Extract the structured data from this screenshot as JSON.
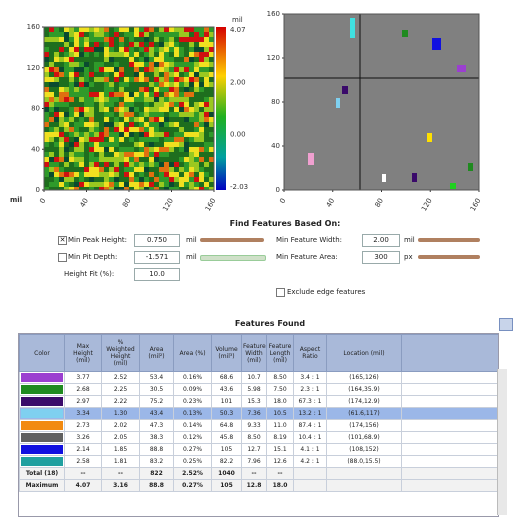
{
  "height_map": {
    "colorbar_unit": "mil",
    "colorbar_labels": [
      "4.07",
      "2.00",
      "0.00",
      "-2.03"
    ],
    "axis_unit": "mil",
    "yticks": [
      "0",
      "40",
      "80",
      "120",
      "160"
    ],
    "xticks": [
      "0",
      "40",
      "80",
      "120",
      "160"
    ]
  },
  "feature_map": {
    "yticks": [
      "0",
      "40",
      "80",
      "120",
      "160"
    ],
    "xticks": [
      "0",
      "40",
      "80",
      "120",
      "160"
    ]
  },
  "find_features": {
    "title": "Find Features Based On:",
    "left_fields": [
      {
        "label": "Min Peak Height:",
        "value": "0.750",
        "unit": "mil",
        "checked": true
      },
      {
        "label": "Min Pit Depth:",
        "value": "-1.571",
        "unit": "mil",
        "checked": false
      },
      {
        "label": "Height Fit (%):",
        "value": "10.0"
      }
    ],
    "right_fields": [
      {
        "label": "Min Feature Width:",
        "value": "2.00",
        "unit": "mil"
      },
      {
        "label": "Min Feature Area:",
        "value": "300",
        "unit": "px"
      }
    ],
    "exclude_edge": {
      "label": "Exclude edge features",
      "checked": false
    }
  },
  "features_found": {
    "title": "Features Found",
    "headers": [
      "Color",
      "Max Height (mil)",
      "% Weighted Height (mil)",
      "Area (mil²)",
      "Area (%)",
      "Volume (mil³)",
      "Feature Width (mil)",
      "Feature Length (mil)",
      "Aspect Ratio",
      "Location (mil)"
    ],
    "rows": [
      {
        "color": "#9b3fd0",
        "cells": [
          "3.77",
          "2.52",
          "53.4",
          "0.16%",
          "68.6",
          "10.7",
          "8.50",
          "3.4 : 1",
          "(165,126)"
        ]
      },
      {
        "color": "#1f8a1f",
        "cells": [
          "2.68",
          "2.25",
          "30.5",
          "0.09%",
          "43.6",
          "5.98",
          "7.50",
          "2.3 : 1",
          "(164,35.9)"
        ]
      },
      {
        "color": "#3a0a6a",
        "cells": [
          "2.97",
          "2.22",
          "75.2",
          "0.23%",
          "101",
          "15.3",
          "18.0",
          "67.3 : 1",
          "(174,12.9)"
        ]
      },
      {
        "color": "#7fd0f0",
        "selected": true,
        "cells": [
          "3.34",
          "1.30",
          "43.4",
          "0.13%",
          "50.3",
          "7.36",
          "10.5",
          "13.2 : 1",
          "(61.6,117)"
        ]
      },
      {
        "color": "#f28a10",
        "cells": [
          "2.73",
          "2.02",
          "47.3",
          "0.14%",
          "64.8",
          "9.33",
          "11.0",
          "87.4 : 1",
          "(174,156)"
        ]
      },
      {
        "color": "#606060",
        "cells": [
          "3.26",
          "2.05",
          "38.3",
          "0.12%",
          "45.8",
          "8.50",
          "8.19",
          "10.4 : 1",
          "(101,68.9)"
        ]
      },
      {
        "color": "#1010e0",
        "cells": [
          "2.14",
          "1.85",
          "88.8",
          "0.27%",
          "105",
          "12.7",
          "15.1",
          "4.1 : 1",
          "(108,152)"
        ]
      },
      {
        "color": "#20a0a0",
        "cells": [
          "2.58",
          "1.81",
          "83.2",
          "0.25%",
          "82.2",
          "7.96",
          "12.6",
          "4.2 : 1",
          "(88.0,15.5)"
        ]
      }
    ],
    "summary": [
      [
        "Total (18)",
        "--",
        "--",
        "822",
        "2.52%",
        "1040",
        "--",
        "--"
      ],
      [
        "Maximum",
        "4.07",
        "3.16",
        "88.8",
        "0.27%",
        "105",
        "12.8",
        "18.0"
      ]
    ]
  }
}
